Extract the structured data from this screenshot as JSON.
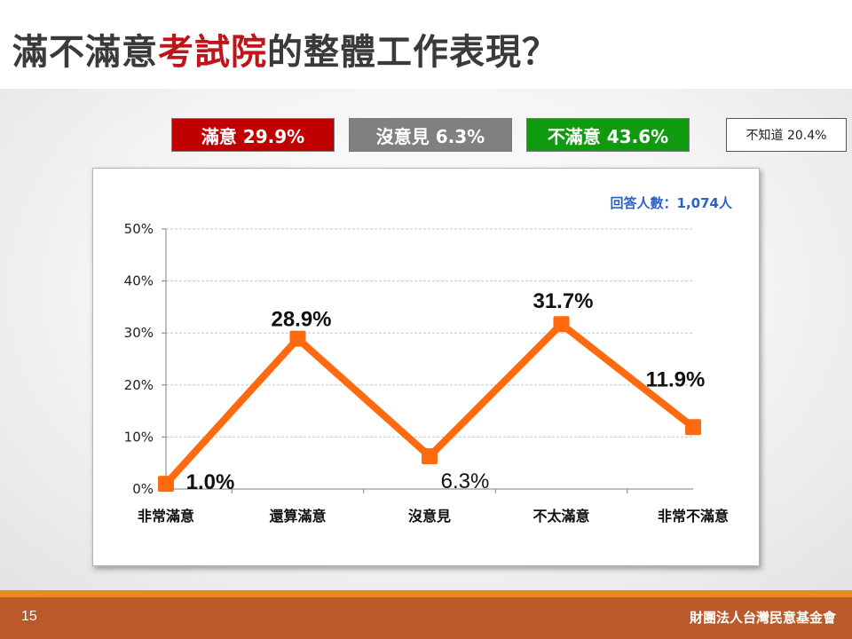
{
  "slide": {
    "title_pre": "滿不滿意",
    "title_highlight": "考試院",
    "title_post": "的整體工作表現？",
    "page_number": "15",
    "organization": "財團法人台灣民意基金會"
  },
  "summary": {
    "satisfied": "滿意 29.9%",
    "no_opinion": "沒意見 6.3%",
    "dissatisfied": "不滿意 43.6%",
    "unknown": "不知道 20.4%"
  },
  "colors": {
    "satisfied": "#c00000",
    "no_opinion": "#808080",
    "dissatisfied": "#109a10",
    "line": "#ff6a10",
    "accent_title": "#c0141b",
    "footer": "#ba5a2a"
  },
  "chart_data": {
    "type": "line",
    "categories": [
      "非常滿意",
      "還算滿意",
      "沒意見",
      "不太滿意",
      "非常不滿意"
    ],
    "series": [
      {
        "values": [
          1.0,
          28.9,
          6.3,
          31.7,
          11.9
        ]
      }
    ],
    "data_labels": [
      "1.0%",
      "28.9%",
      "6.3%",
      "31.7%",
      "11.9%"
    ],
    "yticks": [
      "0%",
      "10%",
      "20%",
      "30%",
      "40%",
      "50%"
    ],
    "ylim": [
      0,
      50
    ],
    "grid": true,
    "annotation": "回答人數：1,074人"
  }
}
